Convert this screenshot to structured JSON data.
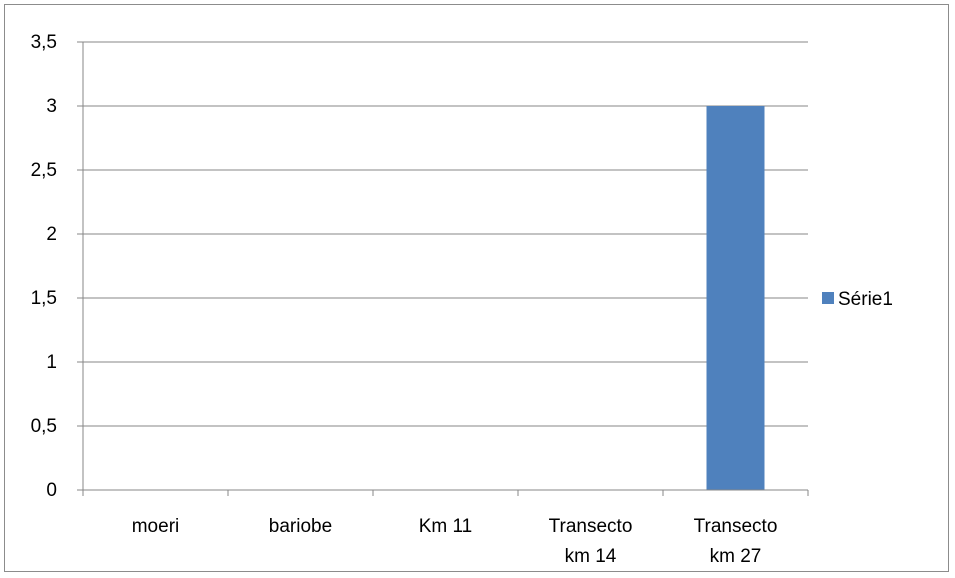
{
  "chart_data": {
    "type": "bar",
    "categories": [
      "moeri",
      "bariobe",
      "Km 11",
      "Transecto km 14",
      "Transecto km 27"
    ],
    "category_lines": [
      [
        "moeri"
      ],
      [
        "bariobe"
      ],
      [
        "Km 11"
      ],
      [
        "Transecto",
        "km 14"
      ],
      [
        "Transecto",
        "km 27"
      ]
    ],
    "series": [
      {
        "name": "Série1",
        "values": [
          0,
          0,
          0,
          0,
          3
        ]
      }
    ],
    "ylim": [
      0,
      3.5
    ],
    "yticks": [
      0,
      0.5,
      1,
      1.5,
      2,
      2.5,
      3,
      3.5
    ],
    "ytick_labels": [
      "0",
      "0,5",
      "1",
      "1,5",
      "2",
      "2,5",
      "3",
      "3,5"
    ],
    "grid": true,
    "legend_position": "right",
    "title": "",
    "xlabel": "",
    "ylabel": "",
    "colors": {
      "series": "#4f81bd",
      "grid": "#878787",
      "axis": "#878787",
      "border": "#8c8c8c"
    }
  }
}
